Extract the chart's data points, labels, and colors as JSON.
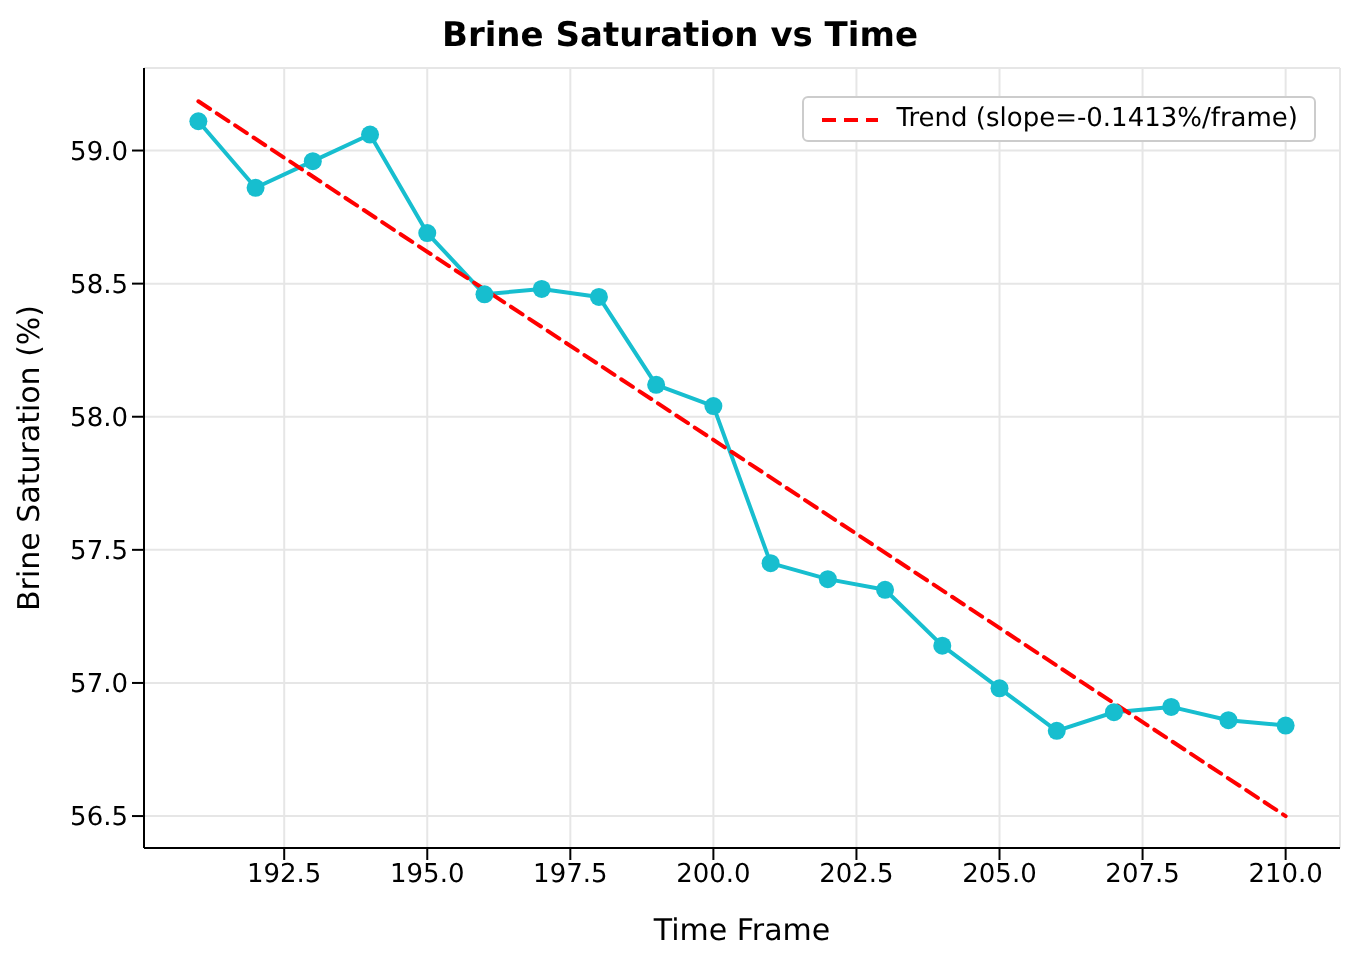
{
  "chart_data": {
    "type": "line",
    "title": "Brine Saturation vs Time",
    "xlabel": "Time Frame",
    "ylabel": "Brine Saturation (%)",
    "x": [
      191,
      192,
      193,
      194,
      195,
      196,
      197,
      198,
      199,
      200,
      201,
      202,
      203,
      204,
      205,
      206,
      207,
      208,
      209,
      210
    ],
    "series": [
      {
        "color": "#17becf",
        "values": [
          59.11,
          58.86,
          58.96,
          59.06,
          58.69,
          58.46,
          58.48,
          58.45,
          58.12,
          58.04,
          57.45,
          57.39,
          57.35,
          57.14,
          56.98,
          56.82,
          56.89,
          56.91,
          56.86,
          56.84
        ]
      },
      {
        "name": "Trend (slope=-0.1413%/frame)",
        "color": "#ff0000",
        "x": [
          191,
          210
        ],
        "values": [
          59.185,
          56.5
        ],
        "line_style": "dashed",
        "marker": "none"
      }
    ],
    "xlim": [
      190.05,
      210.95
    ],
    "ylim": [
      56.38,
      59.31
    ],
    "xticks": [
      192.5,
      {
        "value": 195,
        "label": "195.0"
      },
      197.5,
      {
        "value": 200,
        "label": "200.0"
      },
      202.5,
      {
        "value": 205,
        "label": "205.0"
      },
      207.5,
      {
        "value": 210,
        "label": "210.0"
      }
    ],
    "yticks": [
      56.5,
      {
        "value": 57,
        "label": "57.0"
      },
      57.5,
      {
        "value": 58,
        "label": "58.0"
      },
      58.5,
      {
        "value": 59,
        "label": "59.0"
      }
    ],
    "grid": true,
    "legend": "top right",
    "marker": "circle",
    "line_style": "solid"
  }
}
